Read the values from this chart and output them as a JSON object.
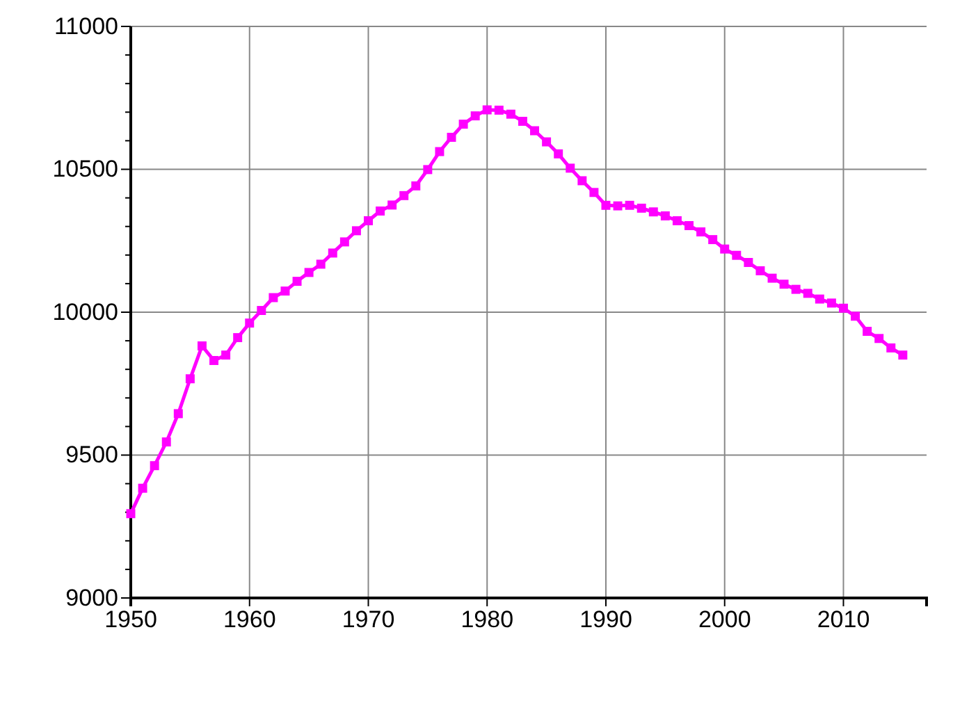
{
  "chart_data": {
    "type": "line",
    "x": [
      1950,
      1951,
      1952,
      1953,
      1954,
      1955,
      1956,
      1957,
      1958,
      1959,
      1960,
      1961,
      1962,
      1963,
      1964,
      1965,
      1966,
      1967,
      1968,
      1969,
      1970,
      1971,
      1972,
      1973,
      1974,
      1975,
      1976,
      1977,
      1978,
      1979,
      1980,
      1981,
      1982,
      1983,
      1984,
      1985,
      1986,
      1987,
      1988,
      1989,
      1990,
      1991,
      1992,
      1993,
      1994,
      1995,
      1996,
      1997,
      1998,
      1999,
      2000,
      2001,
      2002,
      2003,
      2004,
      2005,
      2006,
      2007,
      2008,
      2009,
      2010,
      2011,
      2012,
      2013,
      2014,
      2015
    ],
    "series": [
      {
        "color": "#ff00ff",
        "values": [
          9295,
          9384,
          9463,
          9546,
          9645,
          9767,
          9882,
          9831,
          9850,
          9911,
          9962,
          10006,
          10051,
          10074,
          10108,
          10139,
          10168,
          10207,
          10246,
          10285,
          10320,
          10354,
          10375,
          10408,
          10442,
          10499,
          10562,
          10612,
          10658,
          10687,
          10708,
          10707,
          10693,
          10668,
          10635,
          10596,
          10554,
          10504,
          10460,
          10419,
          10374,
          10372,
          10374,
          10364,
          10351,
          10337,
          10320,
          10303,
          10281,
          10254,
          10221,
          10199,
          10174,
          10145,
          10119,
          10098,
          10080,
          10066,
          10046,
          10032,
          10014,
          9986,
          9933,
          9908,
          9875,
          9850
        ]
      }
    ],
    "xlim": [
      1950,
      2017
    ],
    "xticks": [
      1950,
      1960,
      1970,
      1980,
      1990,
      2000,
      2010
    ],
    "ylim": [
      9000,
      11000
    ],
    "yticks": [
      9000,
      {
        "value": 9100,
        "label": null
      },
      {
        "value": 9200,
        "label": null
      },
      {
        "value": 9300,
        "label": null
      },
      {
        "value": 9400,
        "label": null
      },
      9500,
      {
        "value": 9600,
        "label": null
      },
      {
        "value": 9700,
        "label": null
      },
      {
        "value": 9800,
        "label": null
      },
      {
        "value": 9900,
        "label": null
      },
      10000,
      {
        "value": 10100,
        "label": null
      },
      {
        "value": 10200,
        "label": null
      },
      {
        "value": 10300,
        "label": null
      },
      {
        "value": 10400,
        "label": null
      },
      10500,
      {
        "value": 10600,
        "label": null
      },
      {
        "value": 10700,
        "label": null
      },
      {
        "value": 10800,
        "label": null
      },
      {
        "value": 10900,
        "label": null
      },
      11000
    ],
    "grid": true,
    "marker": "square",
    "line_style": "solid"
  }
}
